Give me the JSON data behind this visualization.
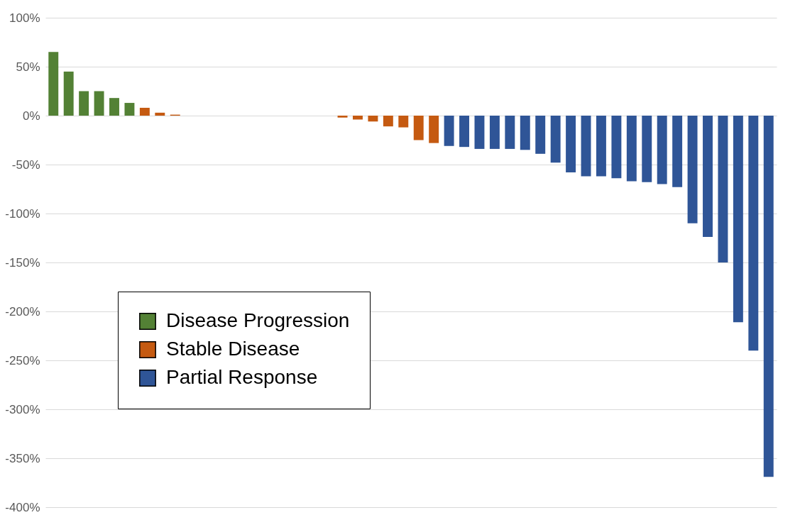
{
  "chart_data": {
    "type": "bar",
    "categories": [
      null,
      null,
      null,
      null,
      null,
      null,
      null,
      null,
      null,
      null,
      null,
      null,
      null,
      null,
      null,
      null,
      null,
      null,
      null,
      null,
      null,
      null,
      null,
      null,
      null,
      null,
      null,
      null,
      null,
      null,
      null,
      null,
      null,
      null,
      null,
      null,
      null,
      null,
      null,
      null,
      null,
      null,
      null,
      null,
      null,
      null,
      null,
      null
    ],
    "series": [
      {
        "name": "Disease Progression",
        "color": "#538135",
        "values": [
          65,
          45,
          25,
          25,
          18,
          13,
          null,
          null,
          null,
          null,
          null,
          null,
          null,
          null,
          null,
          null,
          null,
          null,
          null,
          null,
          null,
          null,
          null,
          null,
          null,
          null,
          null,
          null,
          null,
          null,
          null,
          null,
          null,
          null,
          null,
          null,
          null,
          null,
          null,
          null,
          null,
          null,
          null,
          null,
          null,
          null,
          null,
          null
        ]
      },
      {
        "name": "Stable Disease",
        "color": "#c55a11",
        "values": [
          null,
          null,
          null,
          null,
          null,
          null,
          8,
          3,
          1,
          null,
          null,
          null,
          null,
          null,
          null,
          null,
          null,
          null,
          null,
          -2,
          -4,
          -6,
          -11,
          -12,
          -25,
          -28,
          null,
          null,
          null,
          null,
          null,
          null,
          null,
          null,
          null,
          null,
          null,
          null,
          null,
          null,
          null,
          null,
          null,
          null,
          null,
          null,
          null,
          null
        ]
      },
      {
        "name": "Partial Response",
        "color": "#2f5597",
        "values": [
          null,
          null,
          null,
          null,
          null,
          null,
          null,
          null,
          null,
          null,
          null,
          null,
          null,
          null,
          null,
          null,
          null,
          null,
          null,
          null,
          null,
          null,
          null,
          null,
          null,
          null,
          -31,
          -32,
          -34,
          -34,
          -34,
          -35,
          -39,
          -48,
          -58,
          -62,
          -62,
          -64,
          -67,
          -68,
          -70,
          -73,
          -110,
          -124,
          -150,
          -211,
          -240,
          -369
        ]
      }
    ],
    "ylim": [
      -400,
      100
    ],
    "yticks": [
      {
        "value": 100,
        "label": "100%"
      },
      {
        "value": 50,
        "label": "50%"
      },
      {
        "value": 0,
        "label": "0%"
      },
      {
        "value": -50,
        "label": "-50%"
      },
      {
        "value": -100,
        "label": "-100%"
      },
      {
        "value": -150,
        "label": "-150%"
      },
      {
        "value": -200,
        "label": "-200%"
      },
      {
        "value": -250,
        "label": "-250%"
      },
      {
        "value": -300,
        "label": "-300%"
      },
      {
        "value": -350,
        "label": "-350%"
      },
      {
        "value": -400,
        "label": "-400%"
      }
    ],
    "grid": "y",
    "legend": "left"
  }
}
